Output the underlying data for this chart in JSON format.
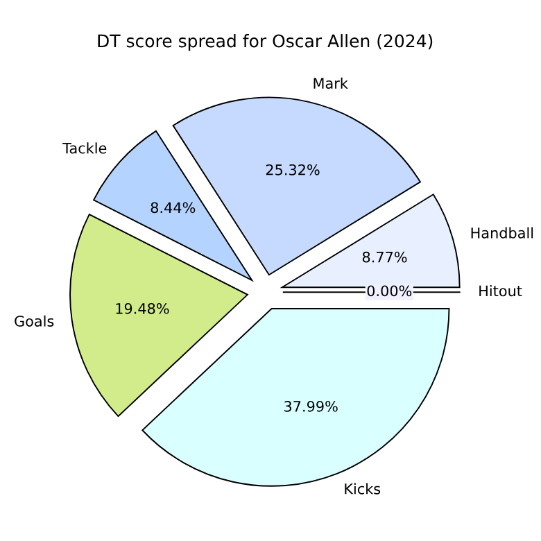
{
  "chart_data": {
    "type": "pie",
    "title": "DT score spread for Oscar Allen (2024)",
    "categories": [
      "Hitout",
      "Handball",
      "Mark",
      "Tackle",
      "Goals",
      "Kicks"
    ],
    "values": [
      0.0,
      8.77,
      25.32,
      8.44,
      19.48,
      37.99
    ],
    "value_labels": [
      "0.00%",
      "8.77%",
      "25.32%",
      "8.44%",
      "19.48%",
      "37.99%"
    ],
    "colors": [
      "#f0f0ff",
      "#e8f0ff",
      "#c6d9ff",
      "#b5d3ff",
      "#d2ec8c",
      "#daffff"
    ],
    "legend": false
  }
}
